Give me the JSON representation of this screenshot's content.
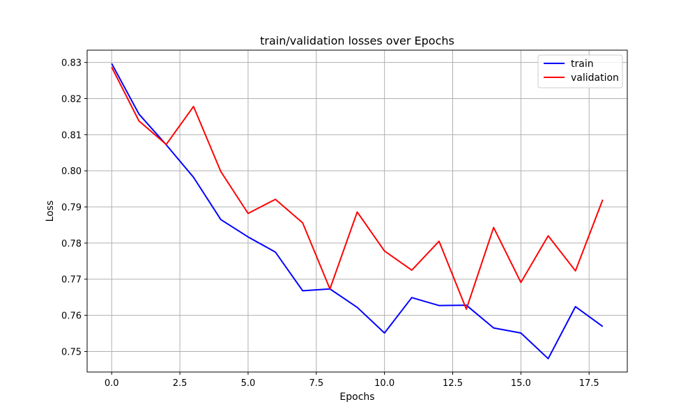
{
  "chart_data": {
    "type": "line",
    "title": "train/validation losses over Epochs",
    "xlabel": "Epochs",
    "ylabel": "Loss",
    "x": [
      0,
      1,
      2,
      3,
      4,
      5,
      6,
      7,
      8,
      9,
      10,
      11,
      12,
      13,
      14,
      15,
      16,
      17,
      18
    ],
    "series": [
      {
        "name": "train",
        "color": "#0000ff",
        "values": [
          0.8297,
          0.8157,
          0.8072,
          0.7982,
          0.7865,
          0.7817,
          0.7775,
          0.7668,
          0.7673,
          0.7622,
          0.7551,
          0.7649,
          0.7627,
          0.7628,
          0.7565,
          0.7551,
          0.748,
          0.7624,
          0.7569
        ]
      },
      {
        "name": "validation",
        "color": "#ff0000",
        "values": [
          0.8287,
          0.8138,
          0.8073,
          0.8178,
          0.7998,
          0.7882,
          0.7921,
          0.7856,
          0.7673,
          0.7886,
          0.7778,
          0.7725,
          0.7805,
          0.7617,
          0.7843,
          0.7691,
          0.782,
          0.7723,
          0.792
        ]
      }
    ],
    "xlim": [
      -0.9,
      18.9
    ],
    "ylim": [
      0.7443,
      0.8334
    ],
    "xticks": [
      0,
      2.5,
      5,
      7.5,
      10,
      12.5,
      15,
      17.5
    ],
    "xtick_labels": [
      "0.0",
      "2.5",
      "5.0",
      "7.5",
      "10.0",
      "12.5",
      "15.0",
      "17.5"
    ],
    "yticks": [
      0.75,
      0.76,
      0.77,
      0.78,
      0.79,
      0.8,
      0.81,
      0.82,
      0.83
    ],
    "ytick_labels": [
      "0.75",
      "0.76",
      "0.77",
      "0.78",
      "0.79",
      "0.80",
      "0.81",
      "0.82",
      "0.83"
    ],
    "grid": true,
    "legend_position": "top-right"
  }
}
